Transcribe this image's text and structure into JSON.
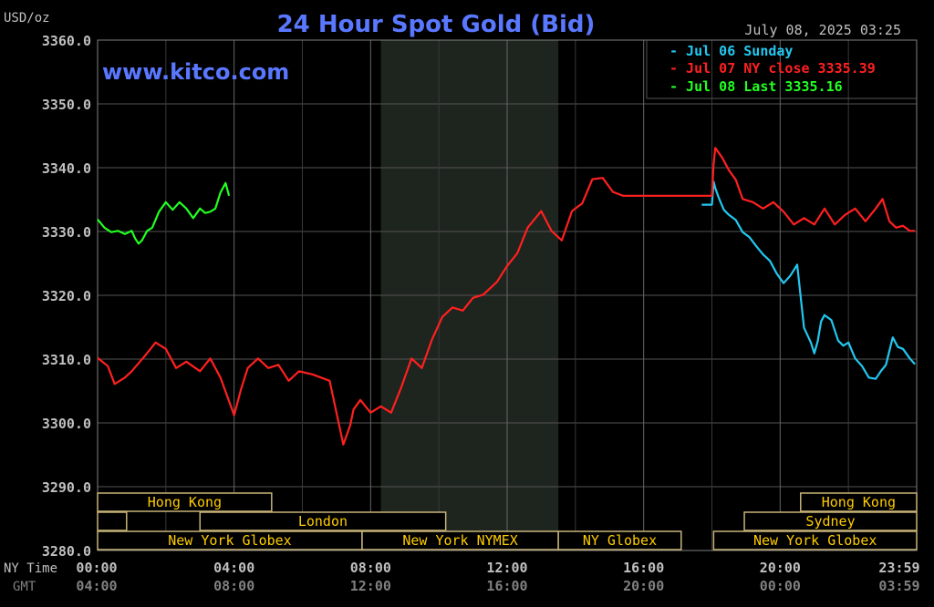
{
  "header": {
    "unit_label": "USD/oz",
    "title": "24 Hour Spot Gold (Bid)",
    "date": "July 08, 2025 03:25",
    "watermark": "www.kitco.com"
  },
  "legend": [
    {
      "label": "Jul 06 Sunday",
      "color": "#22c8f0"
    },
    {
      "label": "Jul 07 NY close 3335.39",
      "color": "#ff2020"
    },
    {
      "label": "Jul 08 Last 3335.16",
      "color": "#22ff22"
    }
  ],
  "axis_labels": {
    "ny_time": "NY Time",
    "gmt": "GMT"
  },
  "sessions": [
    {
      "label": "Hong Kong",
      "row": 1,
      "start": 0,
      "end": 5.1
    },
    {
      "label": "",
      "row": 2,
      "start": 0,
      "end": 0.85
    },
    {
      "label": "London",
      "row": 2,
      "start": 3,
      "end": 10.2
    },
    {
      "label": "New York Globex",
      "row": 3,
      "start": 0,
      "end": 7.75
    },
    {
      "label": "New York NYMEX",
      "row": 3,
      "start": 7.75,
      "end": 13.5
    },
    {
      "label": "NY Globex",
      "row": 3,
      "start": 13.5,
      "end": 17.1
    },
    {
      "label": "Hong Kong",
      "row": 1,
      "start": 20.6,
      "end": 24
    },
    {
      "label": "Sydney",
      "row": 2,
      "start": 18.95,
      "end": 24
    },
    {
      "label": "New York Globex",
      "row": 3,
      "start": 18.05,
      "end": 24
    }
  ],
  "colors": {
    "background": "#000000",
    "grid": "#555555",
    "shade": "#1e241e",
    "title": "#5a78ff",
    "session_border": "#c8b478",
    "session_text": "#ffcc00",
    "axis_text": "#c0c0c0",
    "gmt_text": "#808080"
  },
  "chart_data": {
    "type": "line",
    "title": "24 Hour Spot Gold (Bid)",
    "ylabel": "USD/oz",
    "ylim": [
      3280,
      3360
    ],
    "y_ticks": [
      "3360.0",
      "3350.0",
      "3340.0",
      "3330.0",
      "3320.0",
      "3310.0",
      "3300.0",
      "3290.0",
      "3280.0"
    ],
    "xlim": [
      0,
      24
    ],
    "x_ticks_ny": [
      "00:00",
      "04:00",
      "08:00",
      "12:00",
      "16:00",
      "20:00",
      "23:59"
    ],
    "x_ticks_gmt": [
      "04:00",
      "08:00",
      "12:00",
      "16:00",
      "20:00",
      "00:00",
      "03:59"
    ],
    "x_tick_hours": [
      0,
      4,
      8,
      12,
      16,
      20,
      24
    ],
    "shaded_hours": [
      8.3,
      13.5
    ],
    "series": [
      {
        "name": "Jul 06 Sunday",
        "color": "#22c8f0",
        "x": [
          17.7,
          18.0,
          18.05,
          18.1,
          18.2,
          18.35,
          18.5,
          18.7,
          18.9,
          19.1,
          19.3,
          19.5,
          19.7,
          19.9,
          20.1,
          20.3,
          20.5,
          20.7,
          20.9,
          21.0,
          21.1,
          21.2,
          21.3,
          21.5,
          21.7,
          21.85,
          22.0,
          22.2,
          22.4,
          22.6,
          22.8,
          22.95,
          23.1,
          23.3,
          23.45,
          23.6,
          23.8,
          23.95
        ],
        "y": [
          3334.2,
          3334.2,
          3337.8,
          3336.8,
          3335.3,
          3333.4,
          3332.6,
          3331.8,
          3329.9,
          3329.1,
          3327.7,
          3326.4,
          3325.4,
          3323.4,
          3321.9,
          3323.1,
          3324.8,
          3314.9,
          3312.6,
          3310.9,
          3312.8,
          3315.9,
          3316.9,
          3316.1,
          3312.9,
          3312.1,
          3312.6,
          3310.1,
          3308.9,
          3307.1,
          3306.9,
          3308.1,
          3309.1,
          3313.4,
          3311.9,
          3311.6,
          3310.1,
          3309.2
        ]
      },
      {
        "name": "Jul 07 NY close 3335.39",
        "color": "#ff2020",
        "x": [
          0,
          0.3,
          0.5,
          0.8,
          1.0,
          1.4,
          1.7,
          2.0,
          2.3,
          2.6,
          3.0,
          3.3,
          3.6,
          4.0,
          4.2,
          4.4,
          4.7,
          5.0,
          5.3,
          5.6,
          5.9,
          6.3,
          6.8,
          7.2,
          7.4,
          7.5,
          7.7,
          8.0,
          8.3,
          8.6,
          8.9,
          9.2,
          9.5,
          9.8,
          10.1,
          10.4,
          10.7,
          11.0,
          11.3,
          11.7,
          12.0,
          12.3,
          12.6,
          13.0,
          13.3,
          13.6,
          13.9,
          14.2,
          14.5,
          14.8,
          15.1,
          15.4,
          15.7,
          16.0,
          16.3,
          16.6,
          16.9,
          17.2,
          17.6,
          18.0,
          18.05,
          18.1,
          18.3,
          18.5,
          18.7,
          18.9,
          19.2,
          19.5,
          19.8,
          20.1,
          20.4,
          20.7,
          21.0,
          21.3,
          21.6,
          21.9,
          22.2,
          22.5,
          22.8,
          23.0,
          23.2,
          23.4,
          23.6,
          23.8,
          23.95
        ],
        "y": [
          3310.2,
          3308.9,
          3306.1,
          3307.1,
          3308.1,
          3310.6,
          3312.6,
          3311.6,
          3308.6,
          3309.6,
          3308.1,
          3310.1,
          3307.1,
          3301.2,
          3305.2,
          3308.6,
          3310.1,
          3308.6,
          3309.1,
          3306.6,
          3308.1,
          3307.6,
          3306.6,
          3296.6,
          3299.6,
          3302.1,
          3303.6,
          3301.6,
          3302.6,
          3301.6,
          3305.6,
          3310.1,
          3308.6,
          3313.1,
          3316.6,
          3318.1,
          3317.6,
          3319.6,
          3320.1,
          3322.1,
          3324.6,
          3326.6,
          3330.6,
          3333.2,
          3330.1,
          3328.6,
          3333.2,
          3334.4,
          3338.2,
          3338.4,
          3336.2,
          3335.6,
          3335.6,
          3335.6,
          3335.6,
          3335.6,
          3335.6,
          3335.6,
          3335.6,
          3335.6,
          3340.6,
          3343.1,
          3341.6,
          3339.6,
          3338.1,
          3335.1,
          3334.6,
          3333.6,
          3334.6,
          3333.1,
          3331.1,
          3332.1,
          3331.1,
          3333.6,
          3331.1,
          3332.6,
          3333.6,
          3331.6,
          3333.6,
          3335.1,
          3331.6,
          3330.6,
          3330.9,
          3330.1,
          3330.1
        ]
      },
      {
        "name": "Jul 08 Last 3335.16",
        "color": "#22ff22",
        "x": [
          0,
          0.2,
          0.4,
          0.6,
          0.8,
          1.0,
          1.1,
          1.2,
          1.3,
          1.45,
          1.6,
          1.8,
          2.0,
          2.2,
          2.4,
          2.6,
          2.8,
          3.0,
          3.15,
          3.3,
          3.45,
          3.6,
          3.75,
          3.85
        ],
        "y": [
          3331.9,
          3330.6,
          3329.9,
          3330.1,
          3329.6,
          3330.1,
          3328.9,
          3328.1,
          3328.6,
          3330.1,
          3330.6,
          3333.1,
          3334.6,
          3333.4,
          3334.6,
          3333.6,
          3332.1,
          3333.6,
          3332.9,
          3333.1,
          3333.6,
          3336.1,
          3337.6,
          3335.6
        ]
      }
    ]
  }
}
